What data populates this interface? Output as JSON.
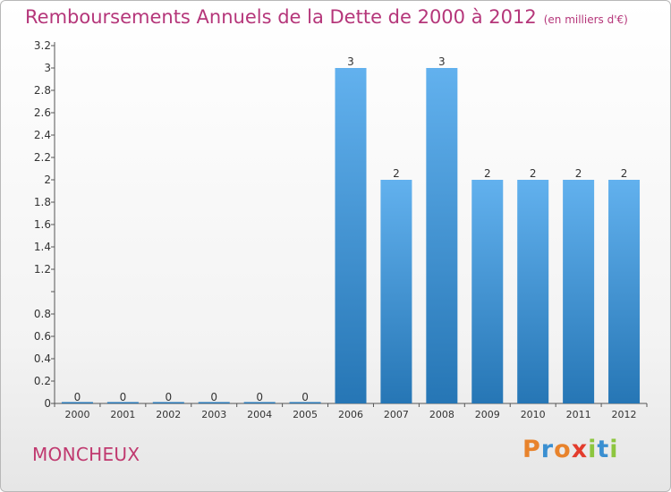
{
  "header": {
    "title": "Remboursements Annuels de la Dette de 2000 à 2012",
    "unit": "(en milliers d'€)"
  },
  "footer": {
    "place": "MONCHEUX",
    "brand": "Proxiti"
  },
  "colors": {
    "title": "#b5367a",
    "bar_top": "#62b1ee",
    "bar_bottom": "#2676b5",
    "brand_letters": [
      "#e8832c",
      "#3a8fd1",
      "#e8832c",
      "#e33c2d",
      "#8dc63f",
      "#3a8fd1",
      "#8dc63f"
    ]
  },
  "chart_data": {
    "type": "bar",
    "title": "Remboursements Annuels de la Dette de 2000 à 2012",
    "unit": "(en milliers d'€)",
    "categories": [
      "2000",
      "2001",
      "2002",
      "2003",
      "2004",
      "2005",
      "2006",
      "2007",
      "2008",
      "2009",
      "2010",
      "2011",
      "2012"
    ],
    "values": [
      0,
      0,
      0,
      0,
      0,
      0,
      3,
      2,
      3,
      2,
      2,
      2,
      2
    ],
    "data_labels": [
      "0",
      "0",
      "0",
      "0",
      "0",
      "0",
      "3",
      "2",
      "3",
      "2",
      "2",
      "2",
      "2"
    ],
    "ylim": [
      0,
      3.2
    ],
    "yticks": [
      0,
      0.2,
      0.4,
      0.6,
      0.8,
      1,
      1.2,
      1.4,
      1.6,
      1.8,
      2,
      2.2,
      2.4,
      2.6,
      2.8,
      3,
      3.2
    ],
    "ytick_labels": [
      "0",
      "0.2",
      "0.4",
      "0.6",
      "0.8",
      "",
      "1.2",
      "1.4",
      "1.6",
      "1.8",
      "2",
      "2.2",
      "2.4",
      "2.6",
      "2.8",
      "3",
      "3.2"
    ],
    "grid": false,
    "legend": "none"
  }
}
